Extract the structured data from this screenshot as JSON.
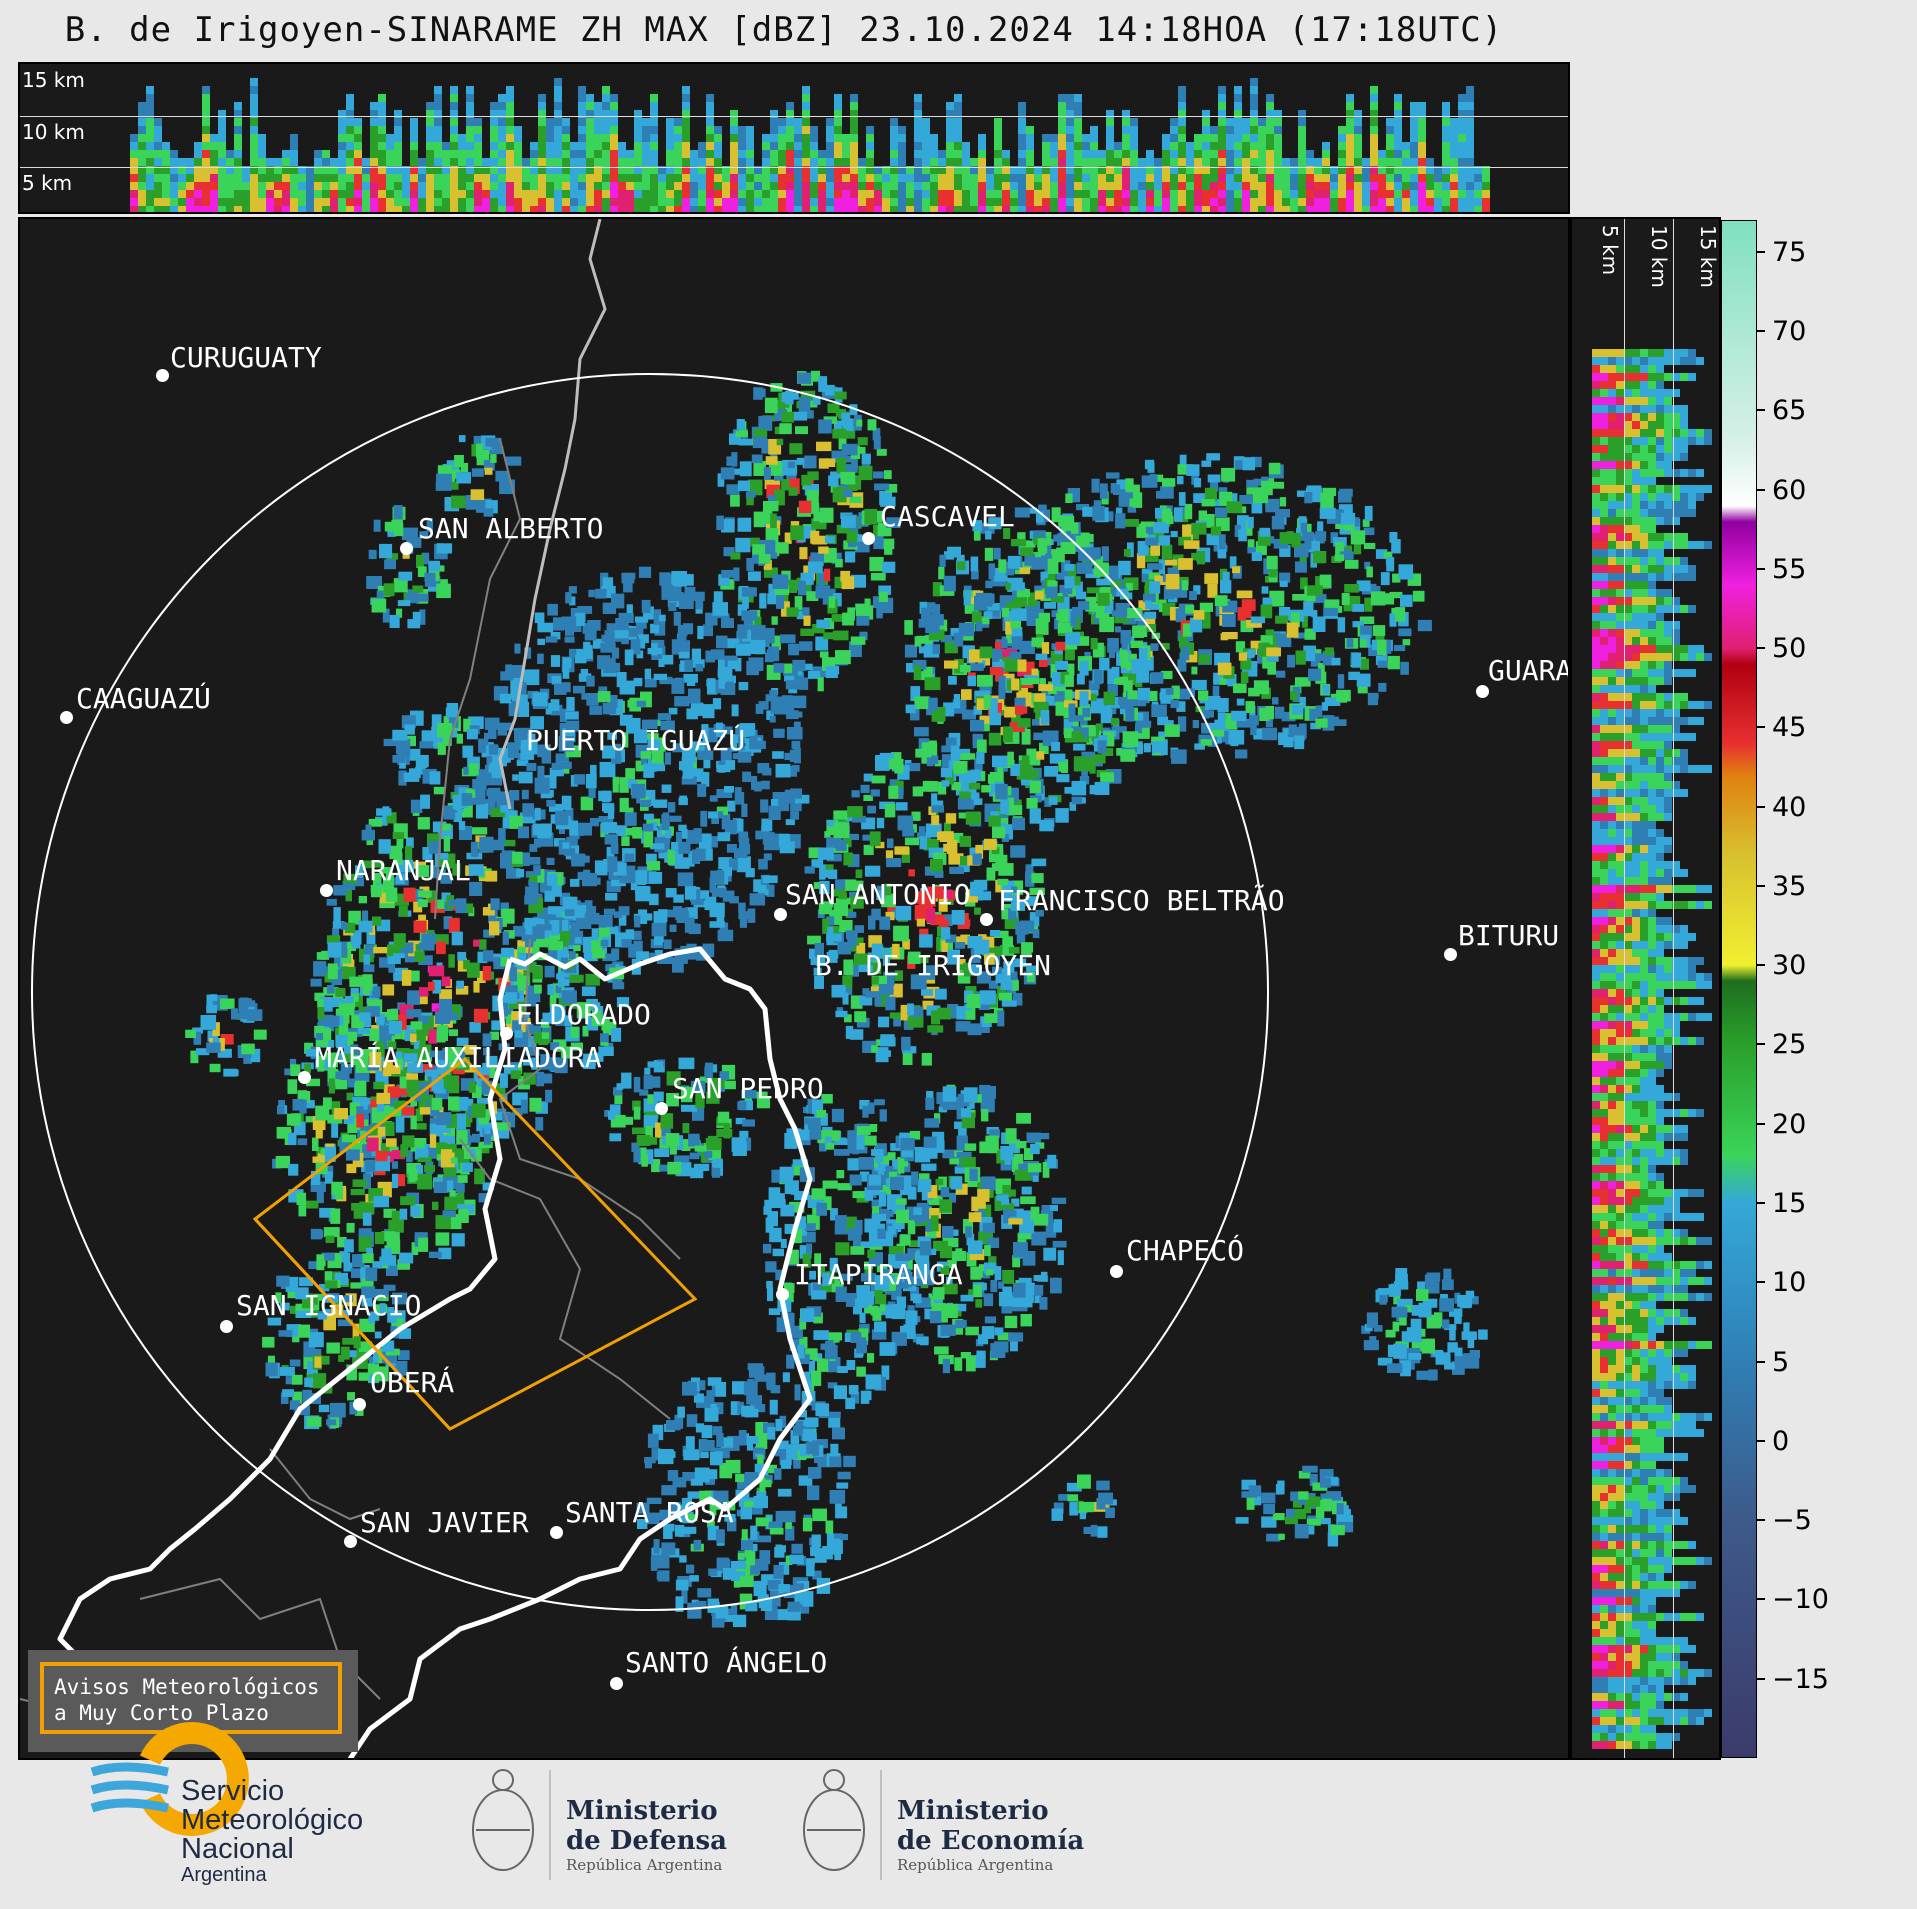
{
  "title": "B. de Irigoyen-SINARAME ZH MAX [dBZ] 23.10.2024 14:18HOA (17:18UTC)",
  "top_panel": {
    "height_labels": [
      "15 km",
      "10 km",
      "5 km"
    ]
  },
  "side_panel": {
    "height_labels": [
      "5 km",
      "10 km",
      "15 km"
    ]
  },
  "colorbar": {
    "unit": "dBZ",
    "ticks": [
      "75",
      "70",
      "65",
      "60",
      "55",
      "50",
      "45",
      "40",
      "35",
      "30",
      "25",
      "20",
      "15",
      "10",
      "5",
      "0",
      "−5",
      "−10",
      "−15"
    ],
    "tick_values": [
      75,
      70,
      65,
      60,
      55,
      50,
      45,
      40,
      35,
      30,
      25,
      20,
      15,
      10,
      5,
      0,
      -5,
      -10,
      -15
    ],
    "range": [
      -20,
      77
    ],
    "stops": [
      {
        "v": -20,
        "c": "#3b3b6b"
      },
      {
        "v": -5,
        "c": "#3d5a8a"
      },
      {
        "v": 5,
        "c": "#2f7fb5"
      },
      {
        "v": 15,
        "c": "#34a8d8"
      },
      {
        "v": 18,
        "c": "#3bd45a"
      },
      {
        "v": 25,
        "c": "#2aa02a"
      },
      {
        "v": 29,
        "c": "#1e6e1e"
      },
      {
        "v": 30,
        "c": "#f0f030"
      },
      {
        "v": 37,
        "c": "#d8c030"
      },
      {
        "v": 42,
        "c": "#e08010"
      },
      {
        "v": 44,
        "c": "#e83030"
      },
      {
        "v": 49,
        "c": "#b00010"
      },
      {
        "v": 50,
        "c": "#e02070"
      },
      {
        "v": 54,
        "c": "#f020e0"
      },
      {
        "v": 58,
        "c": "#9000a0"
      },
      {
        "v": 59,
        "c": "#ffffff"
      },
      {
        "v": 63,
        "c": "#d8f0e8"
      },
      {
        "v": 77,
        "c": "#80e0c0"
      }
    ]
  },
  "cities": [
    {
      "name": "CURUGUATY"
    },
    {
      "name": "SAN ALBERTO"
    },
    {
      "name": "CASCAVEL"
    },
    {
      "name": "CAAGUAZÚ"
    },
    {
      "name": "GUARA"
    },
    {
      "name": "PUERTO IGUAZÚ"
    },
    {
      "name": "NARANJAL"
    },
    {
      "name": "SAN ANTONIO"
    },
    {
      "name": "FRANCISCO BELTRÃO"
    },
    {
      "name": "B. DE IRIGOYEN"
    },
    {
      "name": "BITURU"
    },
    {
      "name": "ELDORADO"
    },
    {
      "name": "MARÍA AUXILIADORA"
    },
    {
      "name": "SAN PEDRO"
    },
    {
      "name": "CHAPECÓ"
    },
    {
      "name": "ITAPIRANGA"
    },
    {
      "name": "SAN IGNACIO"
    },
    {
      "name": "OBERÁ"
    },
    {
      "name": "SAN JAVIER"
    },
    {
      "name": "SANTA ROSA"
    },
    {
      "name": "SANTO ÁNGELO"
    }
  ],
  "legend": {
    "line1": "Avisos Meteorológicos",
    "line2": "a Muy Corto Plazo"
  },
  "footer": {
    "smn": {
      "line1": "Servicio",
      "line2": "Meteorológico",
      "line3": "Nacional",
      "line4": "Argentina"
    },
    "defensa": {
      "line1": "Ministerio",
      "line2": "de Defensa",
      "line3": "República Argentina"
    },
    "economia": {
      "line1": "Ministerio",
      "line2": "de Economía",
      "line3": "República Argentina"
    }
  },
  "colors": {
    "background": "#1a1a1a",
    "warning_polygon": "#f0a000",
    "border": "#ffffff"
  }
}
